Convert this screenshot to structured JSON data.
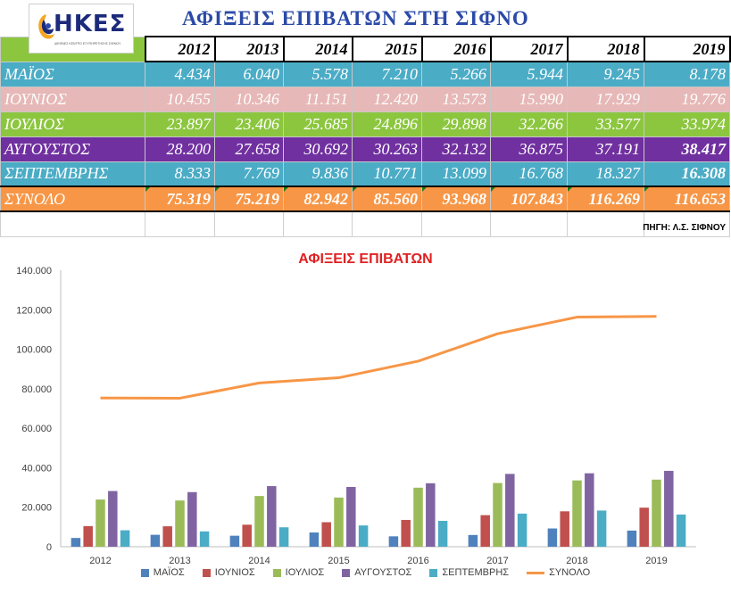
{
  "header": {
    "logo_text": "ΗΚΕΣ",
    "logo_tagline": "ΔΙΕΘΝΕΣ ΚΕΝΤΡΟ ΕΞΥΠΗΡΕΤΗΣΗΣ ΣΙΦΝΟΥ",
    "title": "ΑΦΙΞΕΙΣ ΕΠΙΒΑΤΩΝ ΣΤΗ ΣΙΦΝΟ"
  },
  "table": {
    "years": [
      "2012",
      "2013",
      "2014",
      "2015",
      "2016",
      "2017",
      "2018",
      "2019"
    ],
    "rows": [
      {
        "label": "ΜΑΪΟΣ",
        "values": [
          "4.434",
          "6.040",
          "5.578",
          "7.210",
          "5.266",
          "5.944",
          "9.245",
          "8.178"
        ]
      },
      {
        "label": "ΙΟΥΝΙΟΣ",
        "values": [
          "10.455",
          "10.346",
          "11.151",
          "12.420",
          "13.573",
          "15.990",
          "17.929",
          "19.776"
        ]
      },
      {
        "label": "ΙΟΥΛΙΟΣ",
        "values": [
          "23.897",
          "23.406",
          "25.685",
          "24.896",
          "29.898",
          "32.266",
          "33.577",
          "33.974"
        ]
      },
      {
        "label": "ΑΥΓΟΥΣΤΟΣ",
        "values": [
          "28.200",
          "27.658",
          "30.692",
          "30.263",
          "32.132",
          "36.875",
          "37.191",
          "38.417"
        ]
      },
      {
        "label": "ΣΕΠΤΕΜΒΡΗΣ",
        "values": [
          "8.333",
          "7.769",
          "9.836",
          "10.771",
          "13.099",
          "16.768",
          "18.327",
          "16.308"
        ]
      },
      {
        "label": "ΣΥΝΟΛΟ",
        "values": [
          "75.319",
          "75.219",
          "82.942",
          "85.560",
          "93.968",
          "107.843",
          "116.269",
          "116.653"
        ]
      }
    ],
    "source": "ΠΗΓΗ: Λ.Σ. ΣΙΦΝΟΥ"
  },
  "chart_data": {
    "type": "bar",
    "title": "ΑΦΙΞΕΙΣ ΕΠΙΒΑΤΩΝ",
    "categories": [
      "2012",
      "2013",
      "2014",
      "2015",
      "2016",
      "2017",
      "2018",
      "2019"
    ],
    "ylim": [
      0,
      140000
    ],
    "yticks": [
      "0",
      "20.000",
      "40.000",
      "60.000",
      "80.000",
      "100.000",
      "120.000",
      "140.000"
    ],
    "legend_position": "bottom",
    "grid": false,
    "series": [
      {
        "name": "ΜΑΪΟΣ",
        "kind": "bar",
        "color": "#4f81bd",
        "values": [
          4434,
          6040,
          5578,
          7210,
          5266,
          5944,
          9245,
          8178
        ]
      },
      {
        "name": "ΙΟΥΝΙΟΣ",
        "kind": "bar",
        "color": "#c0504d",
        "values": [
          10455,
          10346,
          11151,
          12420,
          13573,
          15990,
          17929,
          19776
        ]
      },
      {
        "name": "ΙΟΥΛΙΟΣ",
        "kind": "bar",
        "color": "#9bbb59",
        "values": [
          23897,
          23406,
          25685,
          24896,
          29898,
          32266,
          33577,
          33974
        ]
      },
      {
        "name": "ΑΥΓΟΥΣΤΟΣ",
        "kind": "bar",
        "color": "#8064a2",
        "values": [
          28200,
          27658,
          30692,
          30263,
          32132,
          36875,
          37191,
          38417
        ]
      },
      {
        "name": "ΣΕΠΤΕΜΒΡΗΣ",
        "kind": "bar",
        "color": "#4bacc6",
        "values": [
          8333,
          7769,
          9836,
          10771,
          13099,
          16768,
          18327,
          16308
        ]
      },
      {
        "name": "ΣΥΝΟΛΟ",
        "kind": "line",
        "color": "#f79646",
        "values": [
          75319,
          75219,
          82942,
          85560,
          93968,
          107843,
          116269,
          116653
        ]
      }
    ]
  }
}
